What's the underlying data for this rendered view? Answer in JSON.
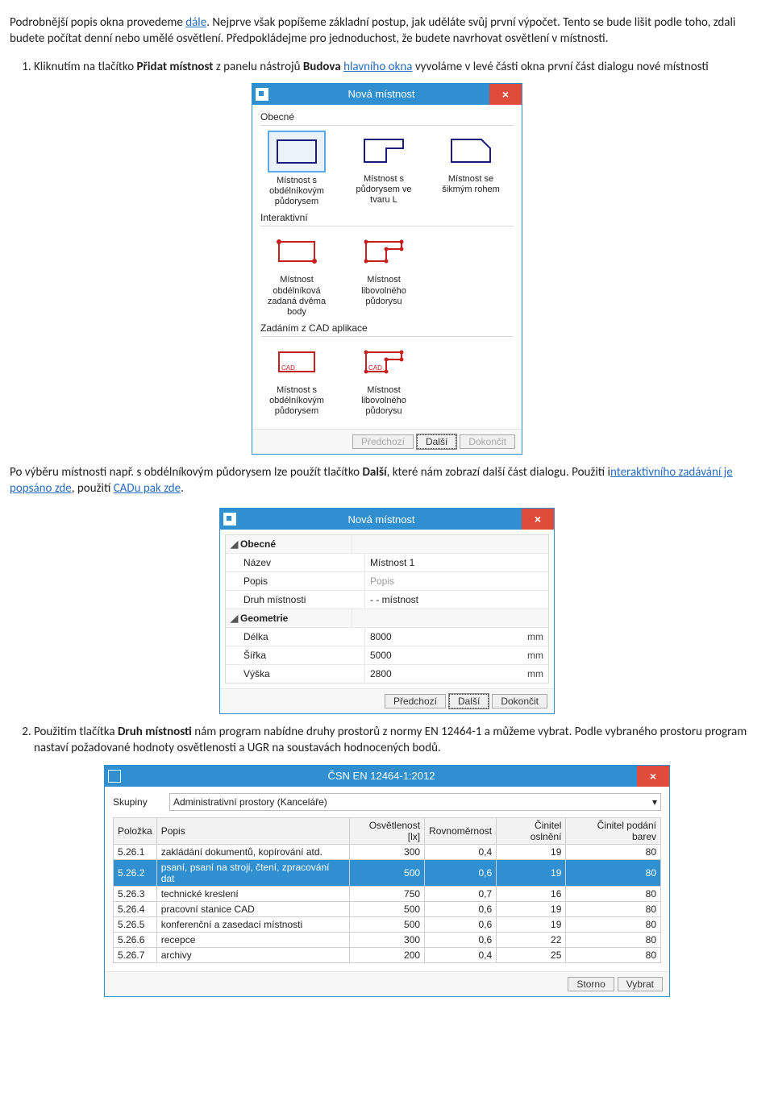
{
  "para1": {
    "pre": "Podrobnější popis okna provedeme ",
    "link": "dále",
    "post": ". Nejprve však popíšeme základní postup, jak uděláte svůj první výpočet. Tento se bude lišit podle toho, zdali budete počítat denní nebo umělé osvětlení. Předpokládejme pro jednoduchost, že budete navrhovat osvětlení v místnosti."
  },
  "step1": {
    "pre": "Kliknutím na tlačítko ",
    "b1": "Přidat místnost",
    "mid1": " z panelu nástrojů ",
    "b2": "Budova",
    "mid2": " ",
    "link": "hlavního okna",
    "post": " vyvoláme v levé části okna první část dialogu nové místnosti"
  },
  "dialog1": {
    "title": "Nová místnost",
    "sections": {
      "s1": "Obecné",
      "s2": "Interaktivní",
      "s3": "Zadáním z CAD aplikace"
    },
    "tiles": {
      "r1": [
        "Místnost s obdélníkovým půdorysem",
        "Místnost s půdorysem ve tvaru L",
        "Místnost se šikmým rohem"
      ],
      "r2": [
        "Místnost obdélníková zadaná dvěma body",
        "Místnost libovolného půdorysu"
      ],
      "r3": [
        "Místnost s obdélníkovým půdorysem",
        "Místnost libovolného půdorysu"
      ]
    },
    "buttons": {
      "prev": "Předchozí",
      "next": "Další",
      "finish": "Dokončit"
    }
  },
  "para2": {
    "pre": "Po výběru místnosti např. s obdélníkovým půdorysem lze použít tlačítko ",
    "b": "Další",
    "mid": ", které nám zobrazí další část dialogu. Použití ",
    "link1_pre": "i",
    "link1": "nteraktivního zadávání je popsáno zde",
    "mid2": ", použití ",
    "link2": "CADu pak zde",
    "post": "."
  },
  "dialog2": {
    "title": "Nová místnost",
    "groups": {
      "g1": "Obecné",
      "g2": "Geometrie"
    },
    "rows": {
      "name_k": "Název",
      "name_v": "Místnost 1",
      "desc_k": "Popis",
      "desc_v": "Popis",
      "type_k": "Druh místnosti",
      "type_v": "- - místnost",
      "len_k": "Délka",
      "len_v": "8000",
      "len_u": "mm",
      "wid_k": "Šířka",
      "wid_v": "5000",
      "wid_u": "mm",
      "hei_k": "Výška",
      "hei_v": "2800",
      "hei_u": "mm"
    },
    "buttons": {
      "prev": "Předchozí",
      "next": "Další",
      "finish": "Dokončit"
    }
  },
  "step2": {
    "pre": "Použitím tlačítka ",
    "b": "Druh místnosti",
    "post": " nám program nabídne druhy prostorů z normy EN 12464-1 a můžeme vybrat. Podle vybraného prostoru program nastaví požadované hodnoty osvětlenosti a UGR na soustavách hodnocených bodů."
  },
  "dialog3": {
    "title": "ČSN EN 12464-1:2012",
    "filter_label": "Skupiny",
    "filter_value": "Administrativní prostory (Kanceláře)",
    "headers": [
      "Položka",
      "Popis",
      "Osvětlenost [lx]",
      "Rovnoměrnost",
      "Činitel oslnění",
      "Činitel podání barev"
    ],
    "rows": [
      [
        "5.26.1",
        "zakládání dokumentů, kopírování atd.",
        "300",
        "0,4",
        "19",
        "80"
      ],
      [
        "5.26.2",
        "psaní, psaní na stroji, čtení, zpracování dat",
        "500",
        "0,6",
        "19",
        "80"
      ],
      [
        "5.26.3",
        "technické kreslení",
        "750",
        "0,7",
        "16",
        "80"
      ],
      [
        "5.26.4",
        "pracovní stanice CAD",
        "500",
        "0,6",
        "19",
        "80"
      ],
      [
        "5.26.5",
        "konferenční a zasedací místnosti",
        "500",
        "0,6",
        "19",
        "80"
      ],
      [
        "5.26.6",
        "recepce",
        "300",
        "0,6",
        "22",
        "80"
      ],
      [
        "5.26.7",
        "archivy",
        "200",
        "0,4",
        "25",
        "80"
      ]
    ],
    "selected_row": 1,
    "buttons": {
      "cancel": "Storno",
      "select": "Vybrat"
    }
  }
}
